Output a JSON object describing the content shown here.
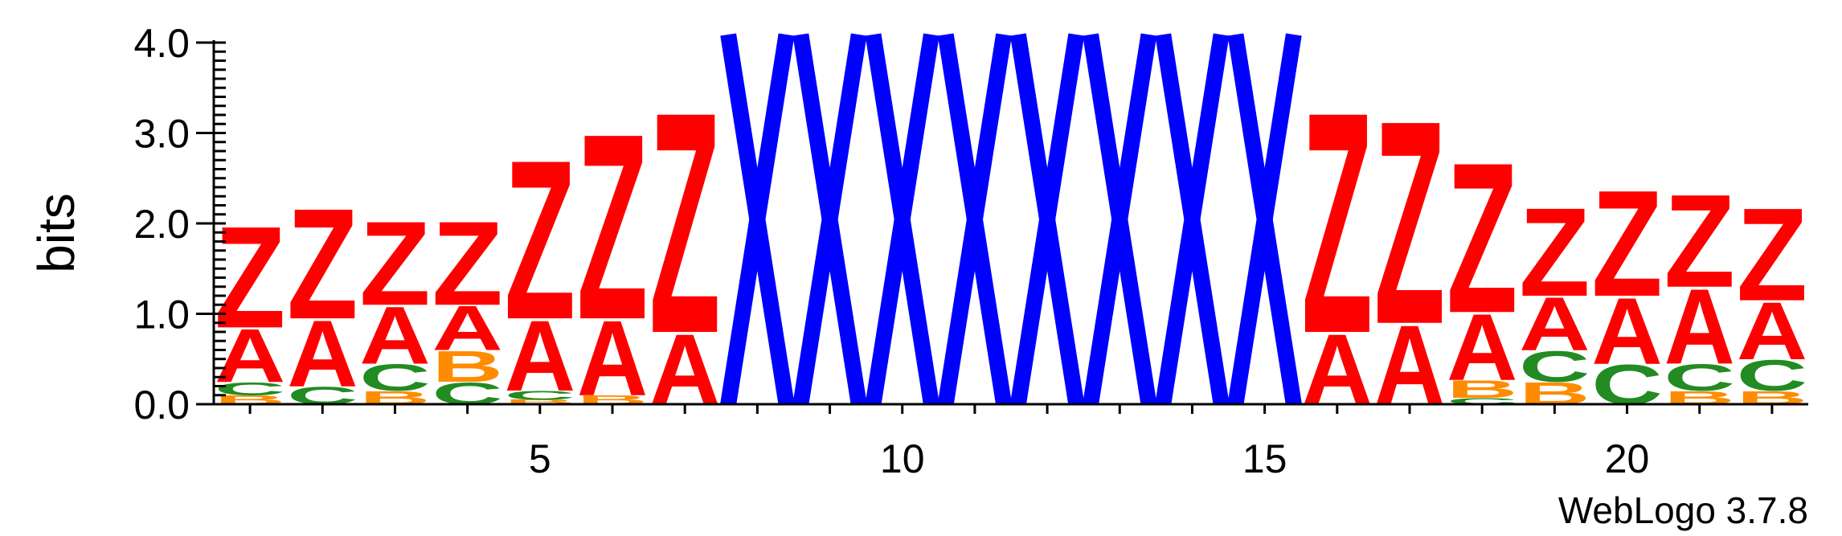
{
  "chart_data": {
    "type": "sequence-logo",
    "ylabel": "bits",
    "ylim": [
      0,
      4.0
    ],
    "y_ticks": [
      "0.0",
      "1.0",
      "2.0",
      "3.0",
      "4.0"
    ],
    "x_ticks": [
      5,
      10,
      15,
      20
    ],
    "positions": 22,
    "colors": {
      "Z": "#ff0000",
      "A": "#ff0000",
      "C": "#228b22",
      "B": "#ff8c00",
      "X": "#0000ff"
    },
    "columns": [
      {
        "pos": 1,
        "stack": [
          [
            "B",
            0.1
          ],
          [
            "C",
            0.15
          ],
          [
            "A",
            0.6
          ],
          [
            "Z",
            1.15
          ]
        ]
      },
      {
        "pos": 2,
        "stack": [
          [
            "C",
            0.2
          ],
          [
            "A",
            0.75
          ],
          [
            "Z",
            1.25
          ]
        ]
      },
      {
        "pos": 3,
        "stack": [
          [
            "B",
            0.15
          ],
          [
            "C",
            0.3
          ],
          [
            "A",
            0.65
          ],
          [
            "Z",
            0.95
          ]
        ]
      },
      {
        "pos": 4,
        "stack": [
          [
            "C",
            0.25
          ],
          [
            "B",
            0.35
          ],
          [
            "A",
            0.5
          ],
          [
            "Z",
            0.95
          ]
        ]
      },
      {
        "pos": 5,
        "stack": [
          [
            "B",
            0.05
          ],
          [
            "C",
            0.1
          ],
          [
            "A",
            0.8
          ],
          [
            "Z",
            1.8
          ]
        ]
      },
      {
        "pos": 6,
        "stack": [
          [
            "B",
            0.1
          ],
          [
            "A",
            0.85
          ],
          [
            "Z",
            2.1
          ]
        ]
      },
      {
        "pos": 7,
        "stack": [
          [
            "A",
            0.8
          ],
          [
            "Z",
            2.5
          ]
        ]
      },
      {
        "pos": 8,
        "stack": [
          [
            "X",
            4.2
          ]
        ]
      },
      {
        "pos": 9,
        "stack": [
          [
            "X",
            4.2
          ]
        ]
      },
      {
        "pos": 10,
        "stack": [
          [
            "X",
            4.2
          ]
        ]
      },
      {
        "pos": 11,
        "stack": [
          [
            "X",
            4.2
          ]
        ]
      },
      {
        "pos": 12,
        "stack": [
          [
            "X",
            4.2
          ]
        ]
      },
      {
        "pos": 13,
        "stack": [
          [
            "X",
            4.2
          ]
        ]
      },
      {
        "pos": 14,
        "stack": [
          [
            "X",
            4.2
          ]
        ]
      },
      {
        "pos": 15,
        "stack": [
          [
            "X",
            4.2
          ]
        ]
      },
      {
        "pos": 16,
        "stack": [
          [
            "A",
            0.8
          ],
          [
            "Z",
            2.5
          ]
        ]
      },
      {
        "pos": 17,
        "stack": [
          [
            "A",
            0.9
          ],
          [
            "Z",
            2.3
          ]
        ]
      },
      {
        "pos": 18,
        "stack": [
          [
            "C",
            0.07
          ],
          [
            "B",
            0.2
          ],
          [
            "A",
            0.75
          ],
          [
            "Z",
            1.7
          ]
        ]
      },
      {
        "pos": 19,
        "stack": [
          [
            "B",
            0.25
          ],
          [
            "C",
            0.35
          ],
          [
            "A",
            0.6
          ],
          [
            "Z",
            1.0
          ]
        ]
      },
      {
        "pos": 20,
        "stack": [
          [
            "C",
            0.45
          ],
          [
            "A",
            0.75
          ],
          [
            "Z",
            1.2
          ]
        ]
      },
      {
        "pos": 21,
        "stack": [
          [
            "B",
            0.15
          ],
          [
            "C",
            0.3
          ],
          [
            "A",
            0.85
          ],
          [
            "Z",
            1.05
          ]
        ]
      },
      {
        "pos": 22,
        "stack": [
          [
            "B",
            0.15
          ],
          [
            "C",
            0.35
          ],
          [
            "A",
            0.65
          ],
          [
            "Z",
            1.05
          ]
        ]
      }
    ]
  },
  "footer": {
    "text": "WebLogo 3.7.8"
  }
}
